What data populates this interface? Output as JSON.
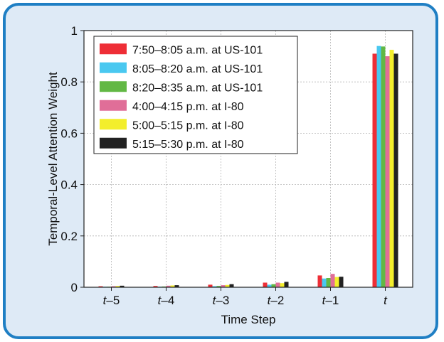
{
  "chart_data": {
    "type": "bar",
    "categories": [
      "t–5",
      "t–4",
      "t–3",
      "t–2",
      "t–1",
      "t"
    ],
    "category_italic_part": "t",
    "xlabel": "Time Step",
    "ylabel": "Temporal-Level Attention Weight",
    "ylim": [
      0,
      1
    ],
    "yticks": [
      0,
      0.2,
      0.4,
      0.6,
      0.8,
      1
    ],
    "ytick_labels": [
      "0",
      "0.2",
      "0.4",
      "0.6",
      "0.8",
      "1"
    ],
    "grid": true,
    "legend_position": "top-left",
    "series": [
      {
        "name": "7:50–8:05 a.m. at US-101",
        "color": "#ee2e36",
        "values": [
          0.004,
          0.005,
          0.01,
          0.018,
          0.046,
          0.91
        ]
      },
      {
        "name": "8:05–8:20 a.m. at US-101",
        "color": "#4ac8f0",
        "values": [
          0.002,
          0.002,
          0.004,
          0.01,
          0.034,
          0.94
        ]
      },
      {
        "name": "8:20–8:35 a.m. at US-101",
        "color": "#62b844",
        "values": [
          0.002,
          0.003,
          0.005,
          0.012,
          0.036,
          0.938
        ]
      },
      {
        "name": "4:00–4:15 p.m. at I-80",
        "color": "#e06e98",
        "values": [
          0.004,
          0.006,
          0.008,
          0.018,
          0.052,
          0.9
        ]
      },
      {
        "name": "5:00–5:15 p.m. at I-80",
        "color": "#f3ee2c",
        "values": [
          0.005,
          0.007,
          0.009,
          0.016,
          0.04,
          0.925
        ]
      },
      {
        "name": "5:15–5:30 p.m. at I-80",
        "color": "#222222",
        "values": [
          0.006,
          0.008,
          0.012,
          0.021,
          0.041,
          0.91
        ]
      }
    ]
  }
}
